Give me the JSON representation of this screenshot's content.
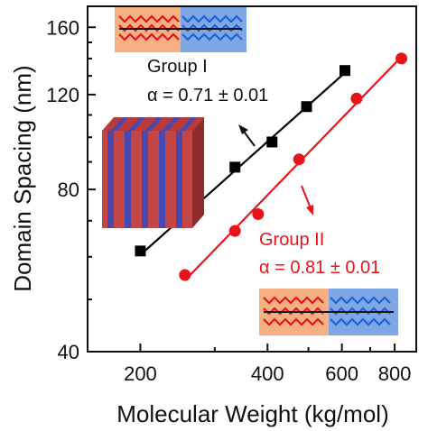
{
  "chart_data": {
    "type": "scatter",
    "xscale": "log",
    "yscale": "log",
    "xlabel": "Molecular Weight (kg/mol)",
    "ylabel": "Domain Spacing (nm)",
    "xlim": [
      150,
      900
    ],
    "ylim": [
      40,
      175
    ],
    "x_ticks": [
      200,
      400,
      600,
      800
    ],
    "y_ticks": [
      40,
      80,
      120,
      160
    ],
    "grid": false,
    "series": [
      {
        "name": "Group I",
        "color": "#000000",
        "marker": "square",
        "x": [
          200,
          255,
          335,
          410,
          495,
          610
        ],
        "y": [
          61.5,
          70,
          88,
          98,
          114,
          133
        ],
        "fit_label": "α = 0.71 ± 0.01"
      },
      {
        "name": "Group II",
        "color": "#e8141c",
        "marker": "circle",
        "x": [
          255,
          335,
          380,
          475,
          650,
          830
        ],
        "y": [
          55.5,
          67,
          72,
          91,
          118,
          140
        ],
        "fit_label": "α = 0.81 ± 0.01"
      }
    ]
  }
}
